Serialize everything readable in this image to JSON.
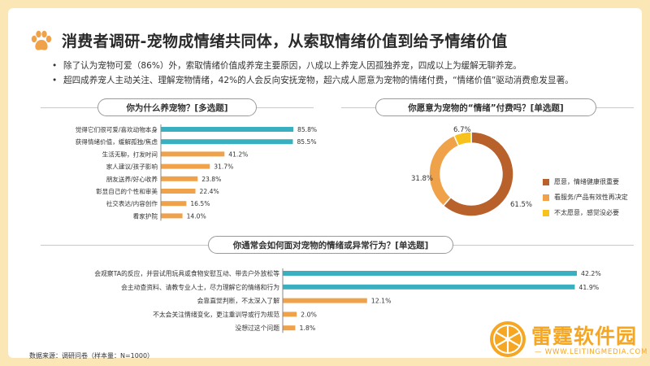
{
  "page": {
    "title": "消费者调研-宠物成情绪共同体，从索取情绪价值到给予情绪价值",
    "bullets": [
      "除了认为宠物可爱（86%）外，索取情绪价值成养宠主要原因，八成以上养宠人因孤独养宠，四成以上为缓解无聊养宠。",
      "超四成养宠人主动关注、理解宠物情绪，42%的人会反向安抚宠物，超六成人愿意为宠物的情绪付费，“情绪价值”驱动消费愈发显著。"
    ],
    "source": "数据来源：调研问卷（样本量：N=1000）",
    "logo": {
      "name": "雷霆软件园",
      "url": "— WWW.LEITINGMEDIA.COM —"
    }
  },
  "colors": {
    "teal": "#3aafc0",
    "orange": "#f0a24a",
    "brown": "#b9612a",
    "yellow": "#f7c21b"
  },
  "chart_data": [
    {
      "type": "bar",
      "title": "你为什么养宠物？[多选题]",
      "orientation": "horizontal",
      "categories": [
        "觉得它们很可爱/喜欢动物本身",
        "获得情绪价值，缓解孤独/焦虑",
        "生活无聊，打发时间",
        "家人建议/孩子影响",
        "朋友送养/好心收养",
        "彰显自己的个性和审美",
        "社交表达/内容创作",
        "看家护院"
      ],
      "values": [
        85.8,
        85.5,
        41.2,
        31.7,
        23.8,
        22.4,
        16.5,
        14.0
      ],
      "labels": [
        "85.8%",
        "85.5%",
        "41.2%",
        "31.7%",
        "23.8%",
        "22.4%",
        "16.5%",
        "14.0%"
      ],
      "highlight_count": 2,
      "xlim": [
        0,
        100
      ]
    },
    {
      "type": "pie",
      "title": "你愿意为宠物的“情绪”付费吗？[单选题]",
      "categories": [
        "愿意，情绪健康很重要",
        "看服务/产品有效性再决定",
        "不太愿意，感觉没必要"
      ],
      "values": [
        61.5,
        31.8,
        6.7
      ],
      "labels": [
        "61.5%",
        "31.8%",
        "6.7%"
      ],
      "colors": [
        "#b9612a",
        "#f0a24a",
        "#f7c21b"
      ]
    },
    {
      "type": "bar",
      "title": "你通常会如何面对宠物的情绪或异常行为？[单选题]",
      "orientation": "horizontal",
      "categories": [
        "会观察TA的反应，并尝试用玩具或食物安慰互动、带去户外放松等",
        "会主动查资料、请教专业人士，尽力理解它的情绪和行为",
        "会靠直觉判断，不太深入了解",
        "不太会关注情绪变化，更注重训导或行为规范",
        "没想过这个问题"
      ],
      "values": [
        42.2,
        41.9,
        12.1,
        2.0,
        1.8
      ],
      "labels": [
        "42.2%",
        "41.9%",
        "12.1%",
        "2.0%",
        "1.8%"
      ],
      "highlight_count": 2,
      "xlim": [
        0,
        42.2
      ]
    }
  ]
}
